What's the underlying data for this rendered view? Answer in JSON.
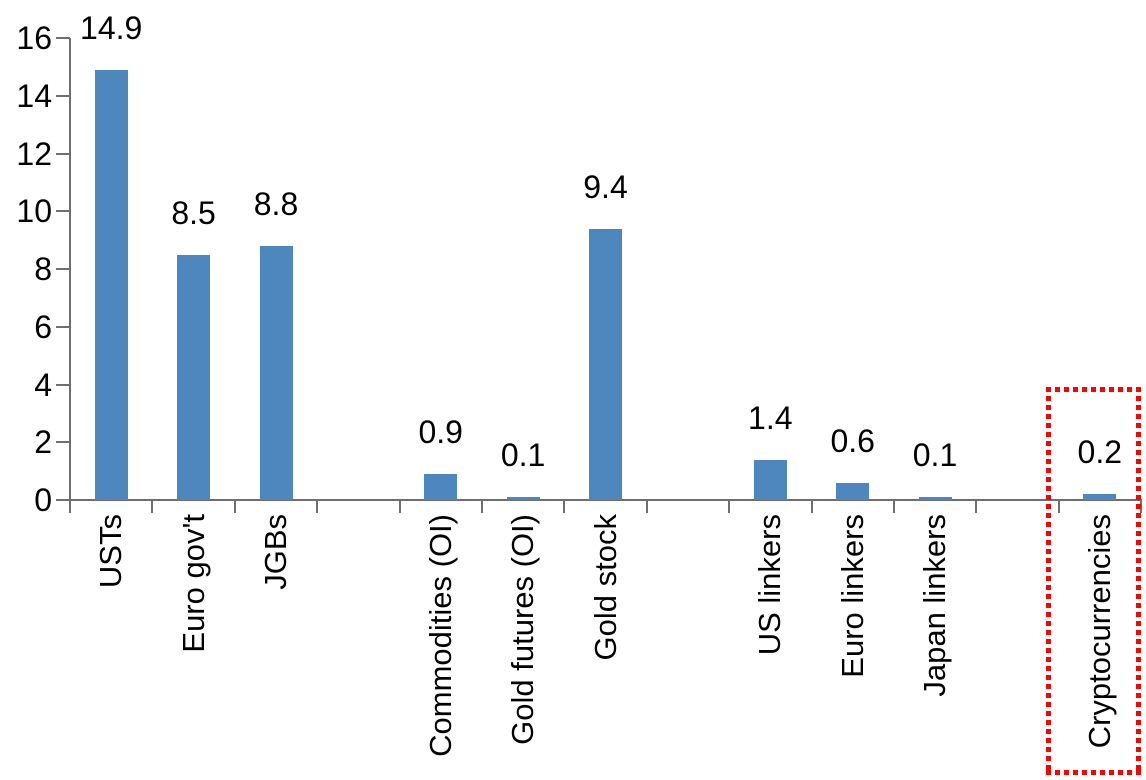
{
  "chart_data": {
    "type": "bar",
    "title": "",
    "xlabel": "",
    "ylabel": "",
    "categories": [
      "USTs",
      "Euro gov't",
      "JGBs",
      "Commodities (OI)",
      "Gold futures (OI)",
      "Gold stock",
      "US linkers",
      "Euro linkers",
      "Japan linkers",
      "Cryptocurrencies"
    ],
    "values": [
      14.9,
      8.5,
      8.8,
      0.9,
      0.1,
      9.4,
      1.4,
      0.6,
      0.1,
      0.2
    ],
    "value_labels": [
      "14.9",
      "8.5",
      "8.8",
      "0.9",
      "0.1",
      "9.4",
      "1.4",
      "0.6",
      "0.1",
      "0.2"
    ],
    "slots": [
      0,
      1,
      2,
      4,
      5,
      6,
      8,
      9,
      10,
      12
    ],
    "total_slots": 13,
    "group_gaps_after": [
      "JGBs",
      "Gold stock",
      "Japan linkers"
    ],
    "y_ticks": [
      0,
      2,
      4,
      6,
      8,
      10,
      12,
      14,
      16
    ],
    "ylim": [
      0,
      16
    ],
    "grid": false,
    "legend": false,
    "colors": {
      "bar": "#4e86be",
      "axis": "#6f6f6f",
      "text": "#000000",
      "highlight_box": "#ff0000",
      "background": "#ffffff"
    },
    "highlight": {
      "category": "Cryptocurrencies",
      "slot": 12,
      "style": "red dotted rectangle around bar and label"
    }
  }
}
